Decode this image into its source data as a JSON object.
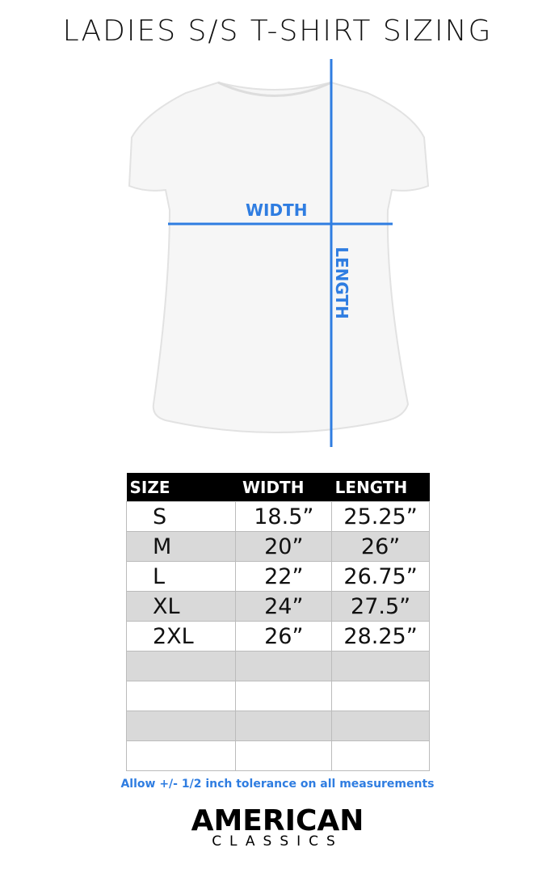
{
  "title": "LADIES S/S T-SHIRT SIZING",
  "diagram": {
    "width_label": "WIDTH",
    "length_label": "LENGTH",
    "accent": "#2f7de1"
  },
  "table": {
    "headers": [
      "SIZE",
      "WIDTH",
      "LENGTH"
    ],
    "rows": [
      [
        "S",
        "18.5”",
        "25.25”"
      ],
      [
        "M",
        "20”",
        "26”"
      ],
      [
        "L",
        "22”",
        "26.75”"
      ],
      [
        "XL",
        "24”",
        "27.5”"
      ],
      [
        "2XL",
        "26”",
        "28.25”"
      ],
      [
        "",
        "",
        ""
      ],
      [
        "",
        "",
        ""
      ],
      [
        "",
        "",
        ""
      ],
      [
        "",
        "",
        ""
      ]
    ]
  },
  "note": "Allow +/- 1/2 inch tolerance on all measurements",
  "logo": {
    "line1": "AMERICAN",
    "line2": "CLASSICS"
  }
}
